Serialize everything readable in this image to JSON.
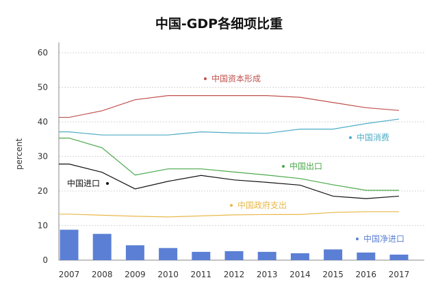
{
  "chart_data": {
    "type": "line",
    "title": "中国-GDP各细项比重",
    "xlabel": "",
    "ylabel": "percent",
    "ylim": [
      0,
      60
    ],
    "yticks": [
      0,
      10,
      20,
      30,
      40,
      50,
      60
    ],
    "grid": true,
    "categories": [
      "2007",
      "2008",
      "2009",
      "2010",
      "2011",
      "2012",
      "2013",
      "2014",
      "2015",
      "2016",
      "2017"
    ],
    "series": [
      {
        "name": "中国资本形成",
        "kind": "line",
        "color": "#c0504d",
        "values": [
          41.3,
          43.2,
          46.4,
          47.6,
          47.6,
          47.6,
          47.6,
          47.1,
          45.6,
          44.1,
          43.3
        ]
      },
      {
        "name": "中国消费",
        "kind": "line",
        "color": "#4bacc6",
        "values": [
          37.1,
          36.2,
          36.2,
          36.2,
          37.1,
          36.8,
          36.7,
          37.9,
          37.9,
          39.5,
          40.8
        ]
      },
      {
        "name": "中国出口",
        "kind": "line",
        "color": "#4aa84a",
        "values": [
          35.3,
          32.5,
          24.6,
          26.4,
          26.4,
          25.5,
          24.6,
          23.6,
          21.8,
          20.2,
          20.2
        ]
      },
      {
        "name": "中国进口",
        "kind": "line",
        "color": "#111111",
        "values": [
          27.8,
          25.4,
          20.6,
          22.8,
          24.5,
          23.2,
          22.5,
          21.7,
          18.5,
          17.8,
          18.5
        ]
      },
      {
        "name": "中国政府支出",
        "kind": "line",
        "color": "#e8b84a",
        "values": [
          13.3,
          13.0,
          12.7,
          12.5,
          12.8,
          13.1,
          13.2,
          13.2,
          13.8,
          14.0,
          14.0
        ]
      },
      {
        "name": "中国净进口",
        "kind": "bar",
        "color": "#5b7fd4",
        "values": [
          8.8,
          7.6,
          4.3,
          3.5,
          2.4,
          2.6,
          2.4,
          2.0,
          3.1,
          2.2,
          1.6
        ]
      }
    ]
  }
}
